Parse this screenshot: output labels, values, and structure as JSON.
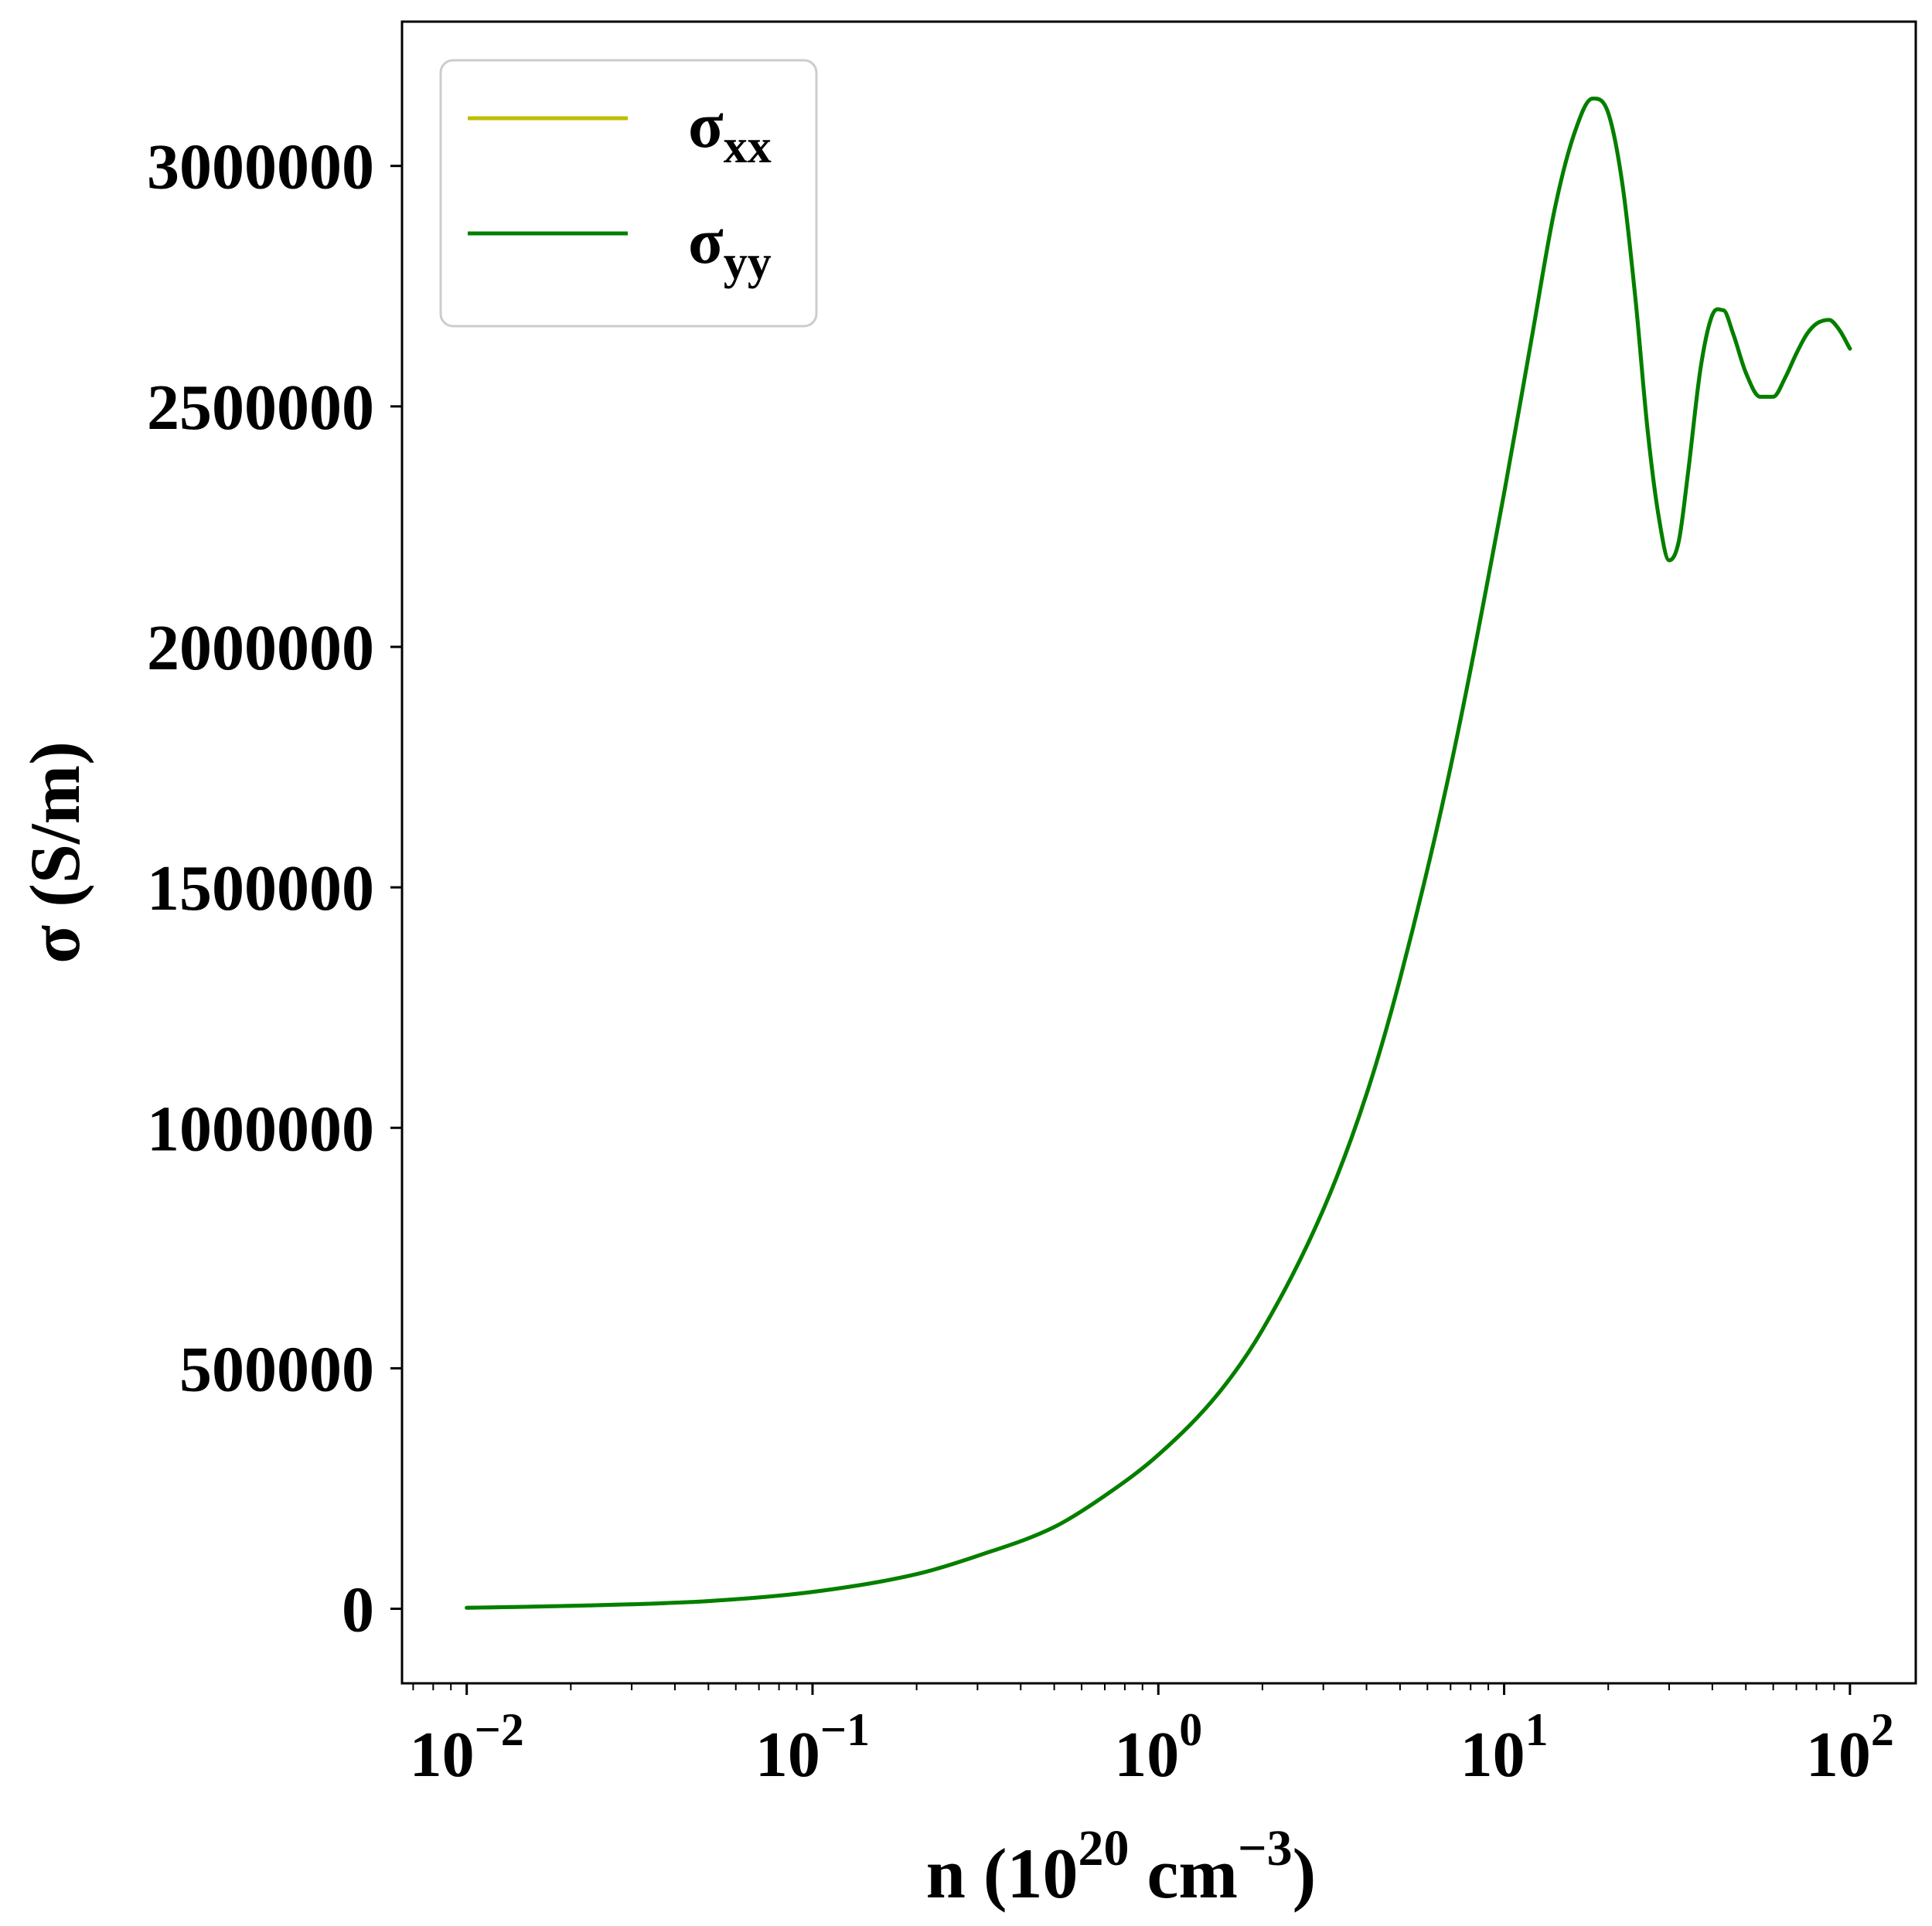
{
  "chart_data": {
    "type": "line",
    "xlabel": {
      "base": "n (10",
      "exp1": "20",
      "mid": " cm",
      "exp2": "−3",
      "tail": ")"
    },
    "ylabel": "σ (S/m)",
    "xscale": "log",
    "xlim": [
      0.0065,
      155
    ],
    "ylim": [
      -155000,
      3300000
    ],
    "xticks": [
      {
        "value": 0.01,
        "base": "10",
        "exp": "−2"
      },
      {
        "value": 0.1,
        "base": "10",
        "exp": "−1"
      },
      {
        "value": 1,
        "base": "10",
        "exp": "0"
      },
      {
        "value": 10,
        "base": "10",
        "exp": "1"
      },
      {
        "value": 100,
        "base": "10",
        "exp": "2"
      }
    ],
    "yticks": [
      {
        "value": 0,
        "label": "0"
      },
      {
        "value": 500000,
        "label": "500000"
      },
      {
        "value": 1000000,
        "label": "1000000"
      },
      {
        "value": 1500000,
        "label": "1500000"
      },
      {
        "value": 2000000,
        "label": "2000000"
      },
      {
        "value": 2500000,
        "label": "2500000"
      },
      {
        "value": 3000000,
        "label": "3000000"
      }
    ],
    "grid": false,
    "legend_position": "top-left",
    "series": [
      {
        "name": "σxx",
        "symbol": "σ",
        "subscript": "xx",
        "color": "#bfbf00",
        "x": [
          0.01,
          0.02,
          0.05,
          0.1,
          0.2,
          0.3,
          0.5,
          0.7,
          1.0,
          1.5,
          2.0,
          3.0,
          4.0,
          5.0,
          7.0,
          10.0,
          12.0,
          14.0,
          16.0,
          18.0,
          20.0,
          22.0,
          24.0,
          26.0,
          28.0,
          30.0,
          32.0,
          34.0,
          37.0,
          40.0,
          43.0,
          46.0,
          50.0,
          55.0,
          60.0,
          65.0,
          70.0,
          75.0,
          80.0,
          87.0,
          93.0,
          100.0
        ],
        "y": [
          2000,
          6000,
          16000,
          35000,
          72000,
          110000,
          170000,
          235000,
          320000,
          450000,
          580000,
          830000,
          1070000,
          1310000,
          1750000,
          2320000,
          2640000,
          2910000,
          3070000,
          3140000,
          3110000,
          2960000,
          2720000,
          2450000,
          2270000,
          2180000,
          2220000,
          2360000,
          2580000,
          2690000,
          2700000,
          2650000,
          2570000,
          2520000,
          2520000,
          2560000,
          2610000,
          2650000,
          2672000,
          2680000,
          2660000,
          2620000
        ]
      },
      {
        "name": "σyy",
        "symbol": "σ",
        "subscript": "yy",
        "color": "#007f00",
        "x": [
          0.01,
          0.02,
          0.05,
          0.1,
          0.2,
          0.3,
          0.5,
          0.7,
          1.0,
          1.5,
          2.0,
          3.0,
          4.0,
          5.0,
          7.0,
          10.0,
          12.0,
          14.0,
          16.0,
          18.0,
          20.0,
          22.0,
          24.0,
          26.0,
          28.0,
          30.0,
          32.0,
          34.0,
          37.0,
          40.0,
          43.0,
          46.0,
          50.0,
          55.0,
          60.0,
          65.0,
          70.0,
          75.0,
          80.0,
          87.0,
          93.0,
          100.0
        ],
        "y": [
          2000,
          6000,
          16000,
          35000,
          72000,
          110000,
          170000,
          235000,
          320000,
          450000,
          580000,
          830000,
          1070000,
          1310000,
          1750000,
          2320000,
          2640000,
          2910000,
          3070000,
          3140000,
          3110000,
          2960000,
          2720000,
          2450000,
          2270000,
          2180000,
          2220000,
          2360000,
          2580000,
          2690000,
          2700000,
          2650000,
          2570000,
          2520000,
          2520000,
          2560000,
          2610000,
          2650000,
          2672000,
          2680000,
          2660000,
          2620000
        ]
      }
    ]
  }
}
